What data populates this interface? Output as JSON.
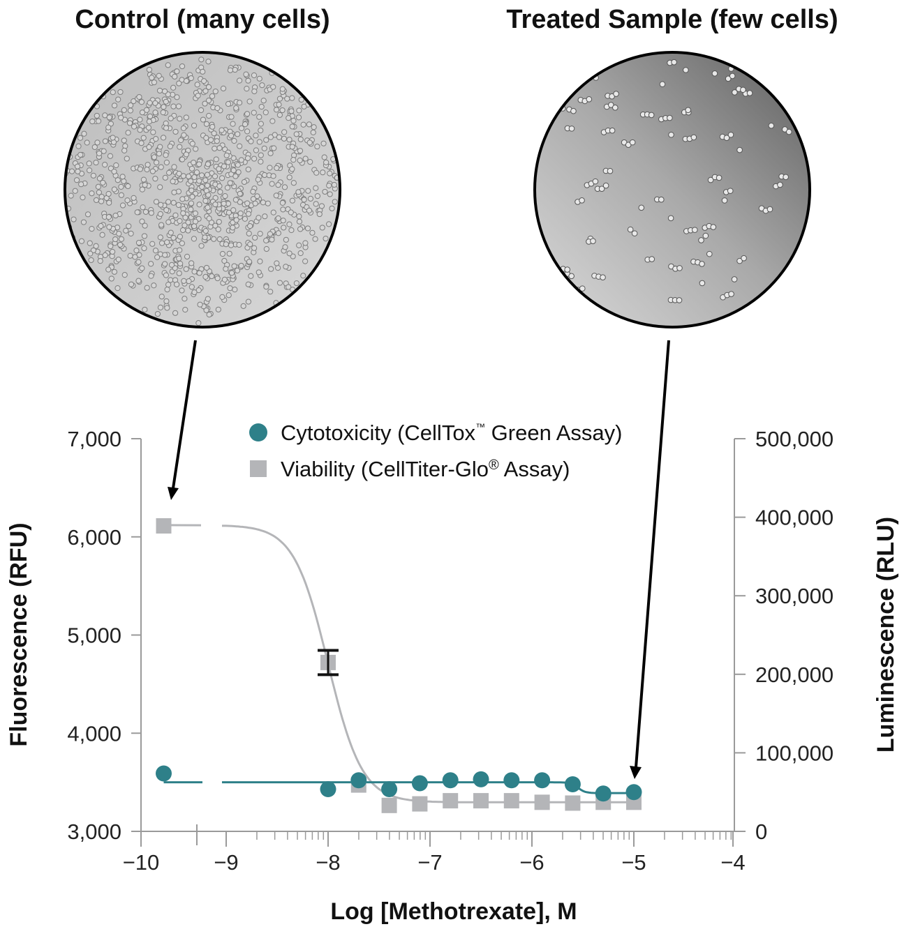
{
  "panels": {
    "left_title": "Control (many cells)",
    "right_title": "Treated Sample (few cells)"
  },
  "chart_data": {
    "type": "scatter",
    "xlabel": "Log [Methotrexate], M",
    "ylabel": "Fluorescence (RFU)",
    "y2label": "Luminescence (RLU)",
    "xlim": [
      -10,
      -4
    ],
    "x_axis_break": [
      -9.7,
      -9.1
    ],
    "ylim": [
      3000,
      7000
    ],
    "y2lim": [
      0,
      500000
    ],
    "xticks": [
      "−10",
      "−9",
      "−8",
      "−7",
      "−6",
      "−5",
      "−4"
    ],
    "xtick_values": [
      -10,
      -9,
      -8,
      -7,
      -6,
      -5,
      -4
    ],
    "yticks": [
      "3,000",
      "4,000",
      "5,000",
      "6,000",
      "7,000"
    ],
    "ytick_values": [
      3000,
      4000,
      5000,
      6000,
      7000
    ],
    "y2ticks": [
      "0",
      "100,000",
      "200,000",
      "300,000",
      "400,000",
      "500,000"
    ],
    "y2tick_values": [
      0,
      100000,
      200000,
      300000,
      400000,
      500000
    ],
    "legend_position": "top",
    "grid": false,
    "series": [
      {
        "name": "Cytotoxicity (CellTox™ Green Assay)",
        "axis": "left",
        "marker": "circle",
        "color": "#2e8089",
        "x": [
          -9.75,
          -8.0,
          -7.7,
          -7.4,
          -7.1,
          -6.8,
          -6.5,
          -6.2,
          -5.9,
          -5.6,
          -5.3,
          -5.0
        ],
        "y": [
          3590,
          3430,
          3520,
          3430,
          3490,
          3520,
          3530,
          3520,
          3520,
          3480,
          3385,
          3400
        ]
      },
      {
        "name": "Viability (CellTiter-Glo® Assay)",
        "axis": "right",
        "marker": "square",
        "color": "#b4b5b8",
        "x": [
          -9.75,
          -8.0,
          -7.7,
          -7.4,
          -7.1,
          -6.8,
          -6.5,
          -6.2,
          -5.9,
          -5.6,
          -5.3,
          -5.0
        ],
        "y": [
          389000,
          215000,
          59000,
          33000,
          35000,
          39000,
          39000,
          39000,
          37000,
          36000,
          37000,
          37000
        ],
        "error": [
          0,
          15500,
          0,
          0,
          0,
          0,
          0,
          0,
          0,
          0,
          0,
          0
        ]
      }
    ]
  },
  "legend": {
    "cyto": "Cytotoxicity (CellTox",
    "cyto_tm": "™",
    "cyto_rest": " Green Assay)",
    "via": "Viability (CellTiter-Glo",
    "via_reg": "®",
    "via_rest": " Assay)"
  }
}
